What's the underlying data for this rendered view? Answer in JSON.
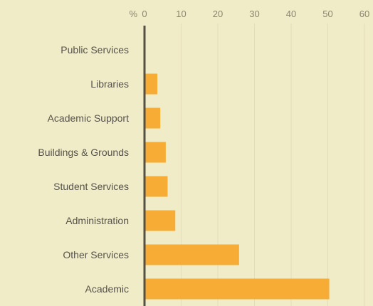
{
  "chart_data": {
    "type": "bar",
    "orientation": "horizontal",
    "unit_label": "%",
    "categories": [
      "Public Services",
      "Libraries",
      "Academic Support",
      "Buildings & Grounds",
      "Student Services",
      "Administration",
      "Other Services",
      "Academic"
    ],
    "values": [
      0,
      3.5,
      4.3,
      5.8,
      6.3,
      8.4,
      25.8,
      50.4
    ],
    "xlim": [
      0,
      60
    ],
    "xticks": [
      0,
      10,
      20,
      30,
      40,
      50,
      60
    ],
    "grid": true,
    "colors": {
      "bar": "#f7ad35",
      "background": "#f1ecc8",
      "axis": "#555044",
      "grid": "#e3ddb9"
    }
  }
}
